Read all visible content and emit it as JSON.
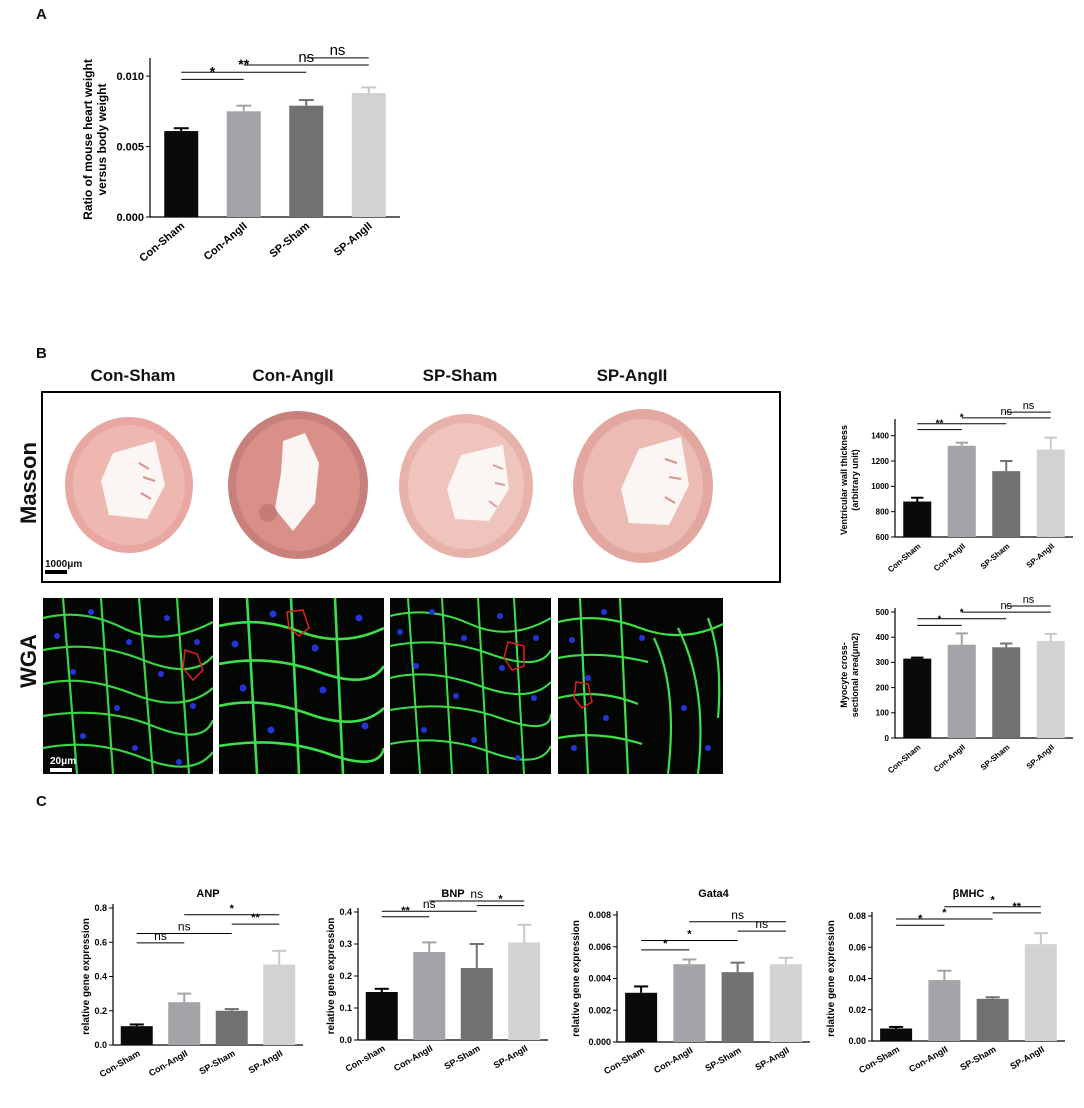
{
  "panels": {
    "a": "A",
    "b": "B",
    "c": "C"
  },
  "histology": {
    "groups": [
      "Con-Sham",
      "Con-AngII",
      "SP-Sham",
      "SP-AngII"
    ],
    "row_masson": "Masson",
    "row_wga": "WGA",
    "scale_masson": "1000μm",
    "scale_wga": "20μm"
  },
  "chart_data": [
    {
      "id": "heart-weight",
      "type": "bar",
      "title": "",
      "ylabel_lines": [
        "Ratio of mouse heart weight",
        "versus body weight"
      ],
      "categories": [
        "Con-Sham",
        "Con-AngII",
        "SP-Sham",
        "SP-AngII"
      ],
      "values": [
        0.0061,
        0.0075,
        0.0079,
        0.0088
      ],
      "errors": [
        0.0002,
        0.0004,
        0.0004,
        0.0004
      ],
      "colors": [
        "#0a0a0a",
        "#a3a3a8",
        "#717171",
        "#d2d2d2"
      ],
      "ylim": [
        0,
        0.011
      ],
      "yticks": [
        0,
        0.005,
        0.01
      ],
      "ytick_labels": [
        "0.000",
        "0.005",
        "0.010"
      ],
      "significance": [
        {
          "from": 0,
          "to": 1,
          "label": "*"
        },
        {
          "from": 0,
          "to": 2,
          "label": "**"
        },
        {
          "from": 1,
          "to": 3,
          "label": "ns"
        },
        {
          "from": 2,
          "to": 3,
          "label": "ns"
        }
      ]
    },
    {
      "id": "wall-thickness",
      "type": "bar",
      "title": "",
      "ylabel_lines": [
        "Ventricular wall thickness",
        "(arbitrary unit)"
      ],
      "categories": [
        "Con-Sham",
        "Con-AngII",
        "SP-Sham",
        "SP-AngII"
      ],
      "values": [
        880,
        1320,
        1120,
        1290
      ],
      "errors": [
        30,
        25,
        80,
        95
      ],
      "colors": [
        "#0a0a0a",
        "#a3a3a8",
        "#717171",
        "#d2d2d2"
      ],
      "ylim": [
        600,
        1500
      ],
      "yticks": [
        600,
        800,
        1000,
        1200,
        1400
      ],
      "ytick_labels": [
        "600",
        "800",
        "1000",
        "1200",
        "1400"
      ],
      "significance": [
        {
          "from": 0,
          "to": 1,
          "label": "**"
        },
        {
          "from": 0,
          "to": 2,
          "label": "*"
        },
        {
          "from": 1,
          "to": 3,
          "label": "ns"
        },
        {
          "from": 2,
          "to": 3,
          "label": "ns"
        }
      ]
    },
    {
      "id": "cross-sectional-area",
      "type": "bar",
      "title": "",
      "ylabel_lines": [
        "Myocyte cross-",
        "sectional area(μm2)"
      ],
      "categories": [
        "Con-Sham",
        "Con-AngII",
        "SP-Sham",
        "SP-AngII"
      ],
      "values": [
        315,
        370,
        360,
        385
      ],
      "errors": [
        4,
        45,
        15,
        28
      ],
      "colors": [
        "#0a0a0a",
        "#a3a3a8",
        "#717171",
        "#d2d2d2"
      ],
      "ylim": [
        0,
        500
      ],
      "yticks": [
        0,
        100,
        200,
        300,
        400,
        500
      ],
      "ytick_labels": [
        "0",
        "100",
        "200",
        "300",
        "400",
        "500"
      ],
      "significance": [
        {
          "from": 0,
          "to": 1,
          "label": "*"
        },
        {
          "from": 0,
          "to": 2,
          "label": "*"
        },
        {
          "from": 1,
          "to": 3,
          "label": "ns"
        },
        {
          "from": 2,
          "to": 3,
          "label": "ns"
        }
      ]
    },
    {
      "id": "anp",
      "type": "bar",
      "title": "ANP",
      "ylabel_lines": [
        "relative gene expression"
      ],
      "categories": [
        "Con-Sham",
        "Con-AngII",
        "SP-Sham",
        "SP-AngII"
      ],
      "values": [
        0.11,
        0.25,
        0.2,
        0.47
      ],
      "errors": [
        0.01,
        0.05,
        0.01,
        0.08
      ],
      "colors": [
        "#0a0a0a",
        "#a3a3a8",
        "#717171",
        "#d2d2d2"
      ],
      "ylim": [
        0,
        0.8
      ],
      "yticks": [
        0,
        0.2,
        0.4,
        0.6,
        0.8
      ],
      "ytick_labels": [
        "0.0",
        "0.2",
        "0.4",
        "0.6",
        "0.8"
      ],
      "significance": [
        {
          "from": 0,
          "to": 1,
          "label": "ns"
        },
        {
          "from": 0,
          "to": 2,
          "label": "ns"
        },
        {
          "from": 2,
          "to": 3,
          "label": "**"
        },
        {
          "from": 1,
          "to": 3,
          "label": "*"
        }
      ]
    },
    {
      "id": "bnp",
      "type": "bar",
      "title": "BNP",
      "ylabel_lines": [
        "relative gene expression"
      ],
      "categories": [
        "Con-sham",
        "Con-AngII",
        "SP-Sham",
        "SP-AngII"
      ],
      "values": [
        0.15,
        0.275,
        0.225,
        0.305
      ],
      "errors": [
        0.01,
        0.03,
        0.075,
        0.055
      ],
      "colors": [
        "#0a0a0a",
        "#a3a3a8",
        "#717171",
        "#d2d2d2"
      ],
      "ylim": [
        0,
        0.4
      ],
      "yticks": [
        0,
        0.1,
        0.2,
        0.3,
        0.4
      ],
      "ytick_labels": [
        "0.0",
        "0.1",
        "0.2",
        "0.3",
        "0.4"
      ],
      "significance": [
        {
          "from": 0,
          "to": 1,
          "label": "**"
        },
        {
          "from": 0,
          "to": 2,
          "label": "ns"
        },
        {
          "from": 2,
          "to": 3,
          "label": "*"
        },
        {
          "from": 1,
          "to": 3,
          "label": "ns"
        }
      ]
    },
    {
      "id": "gata4",
      "type": "bar",
      "title": "Gata4",
      "ylabel_lines": [
        "relative gene expression"
      ],
      "categories": [
        "Con-Sham",
        "Con-AngII",
        "SP-Sham",
        "SP-AngII"
      ],
      "values": [
        0.0031,
        0.0049,
        0.0044,
        0.0049
      ],
      "errors": [
        0.0004,
        0.0003,
        0.0006,
        0.0004
      ],
      "colors": [
        "#0a0a0a",
        "#a3a3a8",
        "#717171",
        "#d2d2d2"
      ],
      "ylim": [
        0,
        0.008
      ],
      "yticks": [
        0,
        0.002,
        0.004,
        0.006,
        0.008
      ],
      "ytick_labels": [
        "0.000",
        "0.002",
        "0.004",
        "0.006",
        "0.008"
      ],
      "significance": [
        {
          "from": 0,
          "to": 1,
          "label": "*"
        },
        {
          "from": 0,
          "to": 2,
          "label": "*"
        },
        {
          "from": 2,
          "to": 3,
          "label": "ns"
        },
        {
          "from": 1,
          "to": 3,
          "label": "ns"
        }
      ]
    },
    {
      "id": "bmhc",
      "type": "bar",
      "title": "βMHC",
      "ylabel_lines": [
        "relative gene expression"
      ],
      "categories": [
        "Con-Sham",
        "Con-AngII",
        "SP-Sham",
        "SP-AngII"
      ],
      "values": [
        0.008,
        0.039,
        0.027,
        0.062
      ],
      "errors": [
        0.001,
        0.006,
        0.001,
        0.007
      ],
      "colors": [
        "#0a0a0a",
        "#a3a3a8",
        "#717171",
        "#d2d2d2"
      ],
      "ylim": [
        0,
        0.08
      ],
      "yticks": [
        0,
        0.02,
        0.04,
        0.06,
        0.08
      ],
      "ytick_labels": [
        "0.00",
        "0.02",
        "0.04",
        "0.06",
        "0.08"
      ],
      "significance": [
        {
          "from": 0,
          "to": 1,
          "label": "*"
        },
        {
          "from": 0,
          "to": 2,
          "label": "*"
        },
        {
          "from": 2,
          "to": 3,
          "label": "**"
        },
        {
          "from": 1,
          "to": 3,
          "label": "*"
        }
      ]
    }
  ]
}
